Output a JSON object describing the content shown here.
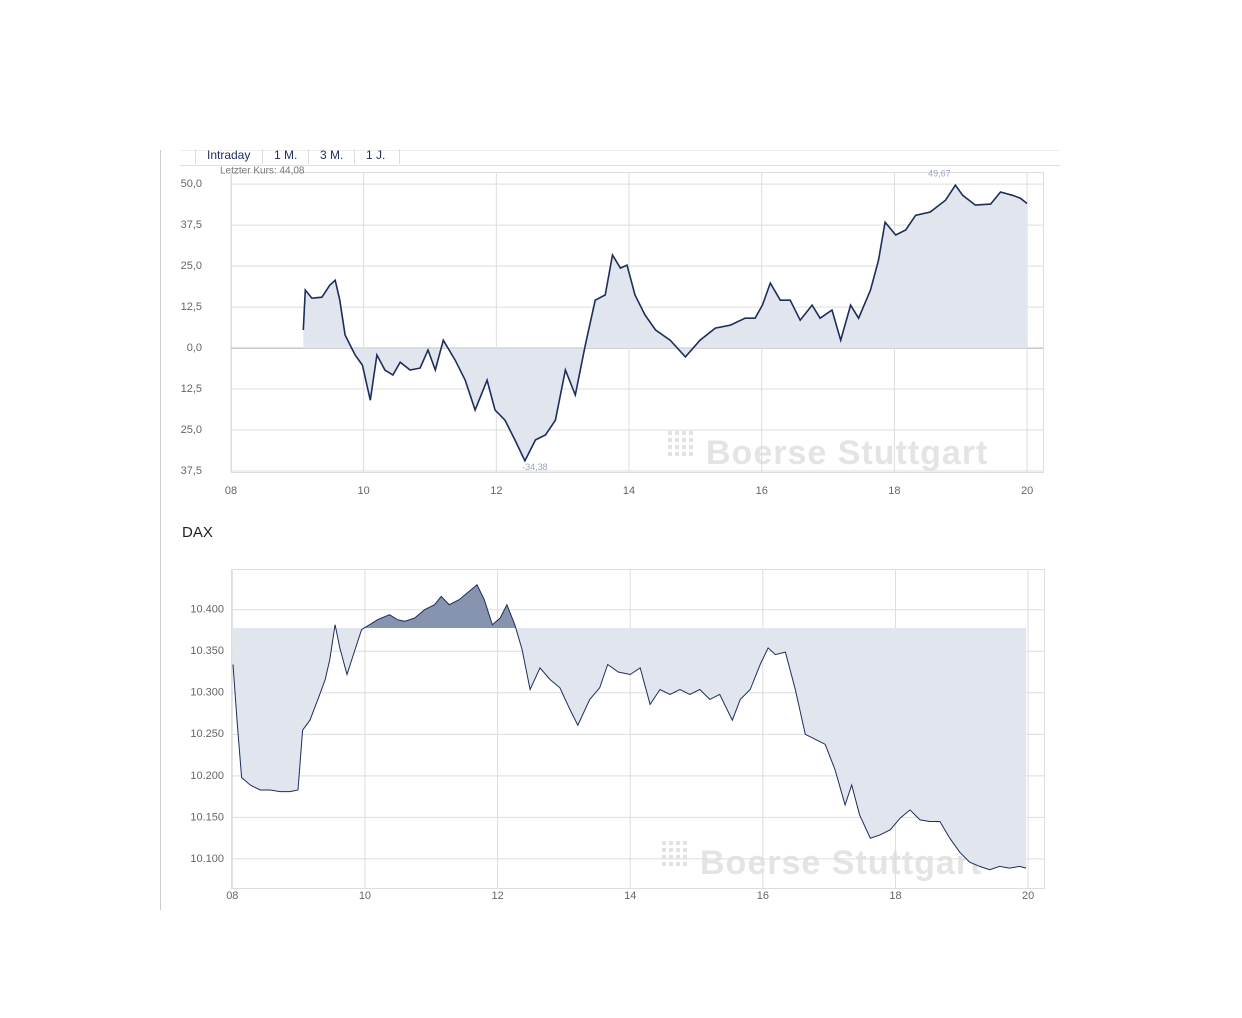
{
  "tabs": [
    "Intraday",
    "1 M.",
    "3 M.",
    "1 J."
  ],
  "watermark": "Boerse Stuttgart",
  "chart_data": [
    {
      "type": "line",
      "last_label": "Letzter Kurs: 44,08",
      "max_label": "49,67",
      "min_label": "-34,38",
      "xlim": [
        8,
        20.24
      ],
      "ylim": [
        -37.8,
        53.7
      ],
      "xticks": [
        {
          "value": 8,
          "label": "08"
        },
        10,
        12,
        14,
        16,
        18,
        20
      ],
      "yticks": [
        {
          "value": 50,
          "label": "50,0"
        },
        {
          "value": 37.5,
          "label": "37,5"
        },
        {
          "value": 25,
          "label": "25,0"
        },
        {
          "value": 12.5,
          "label": "12,5"
        },
        {
          "value": 0,
          "label": "0,0"
        },
        {
          "value": -12.5,
          "label": "12,5"
        },
        {
          "value": -25,
          "label": "25,0"
        },
        {
          "value": -37.5,
          "label": "37,5"
        }
      ],
      "grid": true,
      "line_color": "#1e2d5c",
      "fill_color": "#e1e5ee",
      "x": [
        9.09,
        9.12,
        9.22,
        9.37,
        9.49,
        9.57,
        9.64,
        9.72,
        9.87,
        9.98,
        10.1,
        10.2,
        10.32,
        10.44,
        10.55,
        10.7,
        10.85,
        10.97,
        11.08,
        11.2,
        11.38,
        11.53,
        11.68,
        11.86,
        11.98,
        12.13,
        12.28,
        12.43,
        12.59,
        12.74,
        12.89,
        13.04,
        13.19,
        13.34,
        13.49,
        13.64,
        13.75,
        13.87,
        13.97,
        14.09,
        14.24,
        14.4,
        14.62,
        14.85,
        15.07,
        15.3,
        15.53,
        15.75,
        15.9,
        16.01,
        16.13,
        16.28,
        16.43,
        16.58,
        16.76,
        16.88,
        17.06,
        17.19,
        17.34,
        17.46,
        17.64,
        17.76,
        17.86,
        18.02,
        18.17,
        18.32,
        18.54,
        18.77,
        18.92,
        19.03,
        19.22,
        19.45,
        19.6,
        19.78,
        19.9,
        20.0
      ],
      "series": [
        {
          "values": [
            5.5,
            17.7,
            15.2,
            15.5,
            19.2,
            20.7,
            14.6,
            4,
            -2.1,
            -5.2,
            -15.9,
            -2.1,
            -6.7,
            -8.2,
            -4.3,
            -6.7,
            -6.1,
            -0.6,
            -6.7,
            2.4,
            -3.7,
            -9.8,
            -18.9,
            -9.8,
            -18.9,
            -22,
            -28,
            -34.38,
            -28,
            -26.5,
            -22,
            -6.7,
            -14.3,
            0.9,
            14.6,
            16.2,
            28.4,
            24.4,
            25.3,
            16.2,
            10.1,
            5.5,
            2.4,
            -2.7,
            2.4,
            6.1,
            7,
            9.1,
            9.1,
            13.1,
            19.8,
            14.6,
            14.6,
            8.5,
            13.1,
            9.1,
            11.6,
            2.4,
            13.1,
            9.1,
            17.7,
            26.8,
            38.4,
            34.5,
            36,
            40.5,
            41.5,
            45.1,
            49.67,
            46.6,
            43.6,
            43.9,
            47.6,
            46.6,
            45.7,
            44.08
          ]
        }
      ]
    },
    {
      "type": "line",
      "title": "DAX",
      "xlim": [
        7.98,
        20.24
      ],
      "ylim": [
        10065,
        10449
      ],
      "baseline": 10378,
      "xticks": [
        {
          "value": 8,
          "label": "08"
        },
        10,
        12,
        14,
        16,
        18,
        20
      ],
      "yticks": [
        {
          "value": 10400,
          "label": "10.400"
        },
        {
          "value": 10350,
          "label": "10.350"
        },
        {
          "value": 10300,
          "label": "10.300"
        },
        {
          "value": 10250,
          "label": "10.250"
        },
        {
          "value": 10200,
          "label": "10.200"
        },
        {
          "value": 10150,
          "label": "10.150"
        },
        {
          "value": 10100,
          "label": "10.100"
        }
      ],
      "grid": true,
      "line_color": "#1e2d5c",
      "fill_color": "#e1e5ee",
      "fill_above_color": "#8794b0",
      "x": [
        8.01,
        8.07,
        8.14,
        8.27,
        8.42,
        8.57,
        8.72,
        8.87,
        8.99,
        9.06,
        9.17,
        9.29,
        9.4,
        9.47,
        9.55,
        9.62,
        9.73,
        9.85,
        9.95,
        10.07,
        10.19,
        10.37,
        10.49,
        10.6,
        10.75,
        10.9,
        11.05,
        11.15,
        11.27,
        11.42,
        11.57,
        11.69,
        11.8,
        11.92,
        12.04,
        12.14,
        12.26,
        12.37,
        12.49,
        12.64,
        12.79,
        12.94,
        13.09,
        13.21,
        13.39,
        13.54,
        13.66,
        13.82,
        14.0,
        14.15,
        14.3,
        14.45,
        14.6,
        14.75,
        14.9,
        15.05,
        15.2,
        15.35,
        15.54,
        15.66,
        15.81,
        15.96,
        16.08,
        16.19,
        16.34,
        16.49,
        16.64,
        16.79,
        16.94,
        17.09,
        17.24,
        17.34,
        17.46,
        17.62,
        17.77,
        17.92,
        18.07,
        18.22,
        18.37,
        18.52,
        18.67,
        18.82,
        18.97,
        19.12,
        19.27,
        19.42,
        19.57,
        19.72,
        19.87,
        19.97
      ],
      "series": [
        {
          "values": [
            10334,
            10267,
            10198,
            10189,
            10183,
            10183,
            10181,
            10181,
            10183,
            10255,
            10267,
            10292,
            10316,
            10340,
            10382,
            10354,
            10322,
            10352,
            10376,
            10382,
            10388,
            10394,
            10388,
            10386,
            10390,
            10400,
            10406,
            10416,
            10406,
            10412,
            10422,
            10430,
            10412,
            10382,
            10390,
            10406,
            10382,
            10352,
            10304,
            10330,
            10316,
            10306,
            10280,
            10261,
            10292,
            10306,
            10334,
            10325,
            10322,
            10330,
            10286,
            10304,
            10298,
            10304,
            10298,
            10304,
            10292,
            10298,
            10267,
            10292,
            10304,
            10334,
            10354,
            10346,
            10349,
            10304,
            10250,
            10244,
            10238,
            10207,
            10165,
            10189,
            10153,
            10125,
            10129,
            10135,
            10149,
            10159,
            10147,
            10145,
            10145,
            10125,
            10108,
            10096,
            10091,
            10087,
            10091,
            10089,
            10091,
            10089
          ]
        }
      ]
    }
  ]
}
